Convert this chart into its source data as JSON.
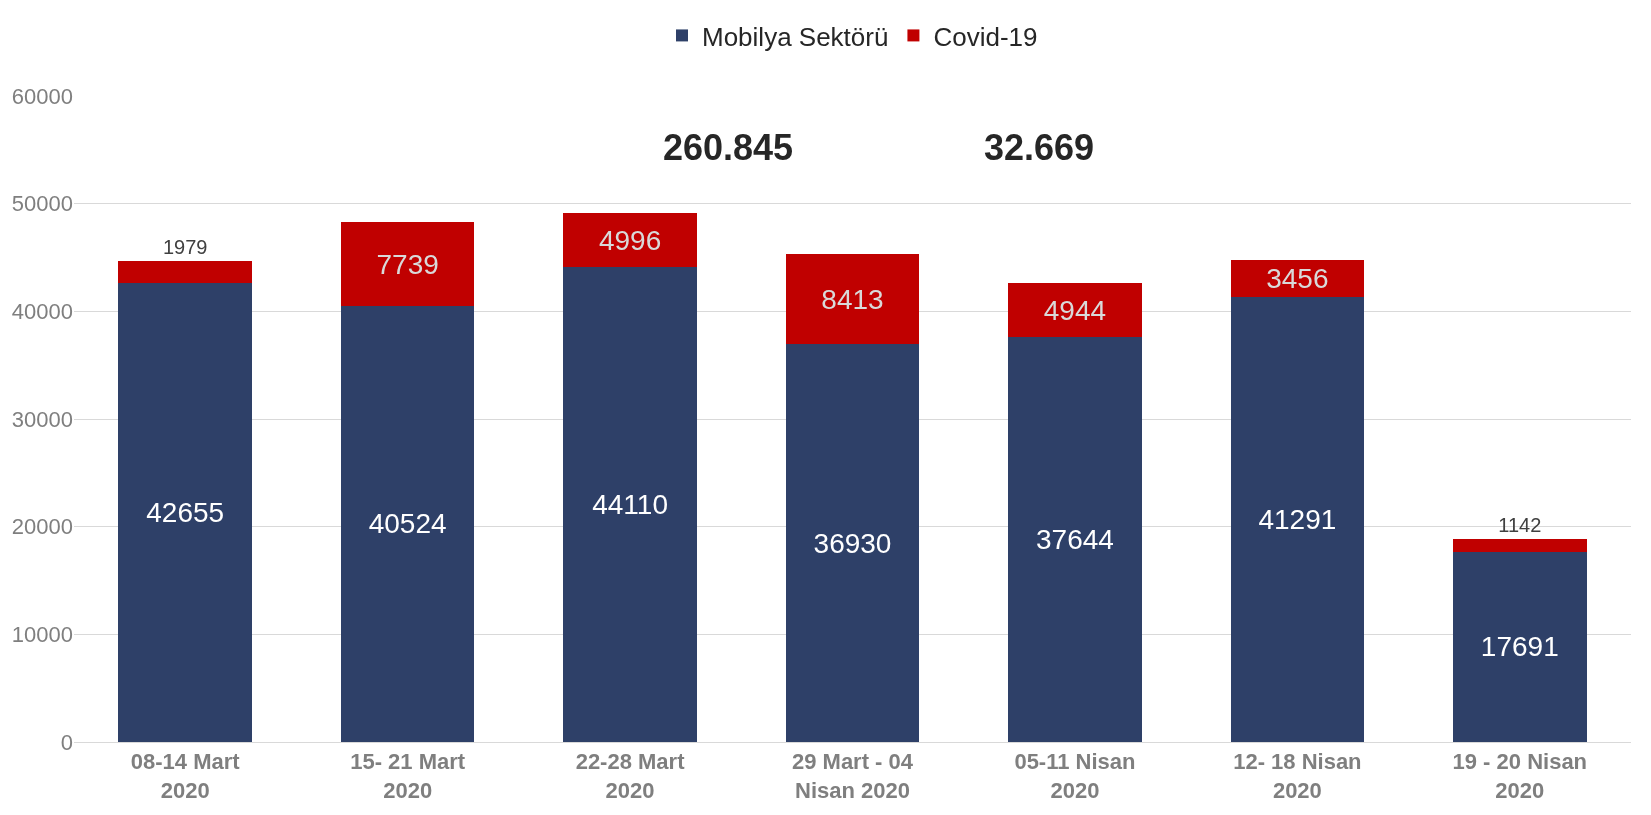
{
  "chart_data": {
    "type": "bar",
    "stacked": true,
    "categories": [
      "08-14 Mart 2020",
      "15- 21 Mart 2020",
      "22-28 Mart 2020",
      "29 Mart - 04 Nisan 2020",
      "05-11 Nisan 2020",
      "12- 18 Nisan 2020",
      "19 - 20 Nisan 2020"
    ],
    "series": [
      {
        "name": "Mobilya Sektörü",
        "color": "#2e4068",
        "values": [
          42655,
          40524,
          44110,
          36930,
          37644,
          41291,
          17691
        ]
      },
      {
        "name": "Covid-19",
        "color": "#c00000",
        "values": [
          1979,
          7739,
          4996,
          8413,
          4944,
          3456,
          1142
        ]
      }
    ],
    "ylim": [
      0,
      60000
    ],
    "yticks": [
      0,
      10000,
      20000,
      30000,
      40000,
      50000,
      60000
    ],
    "grid": "y",
    "legend": "top",
    "data_labels": true,
    "annotations": [
      "260.845",
      "32.669"
    ]
  }
}
